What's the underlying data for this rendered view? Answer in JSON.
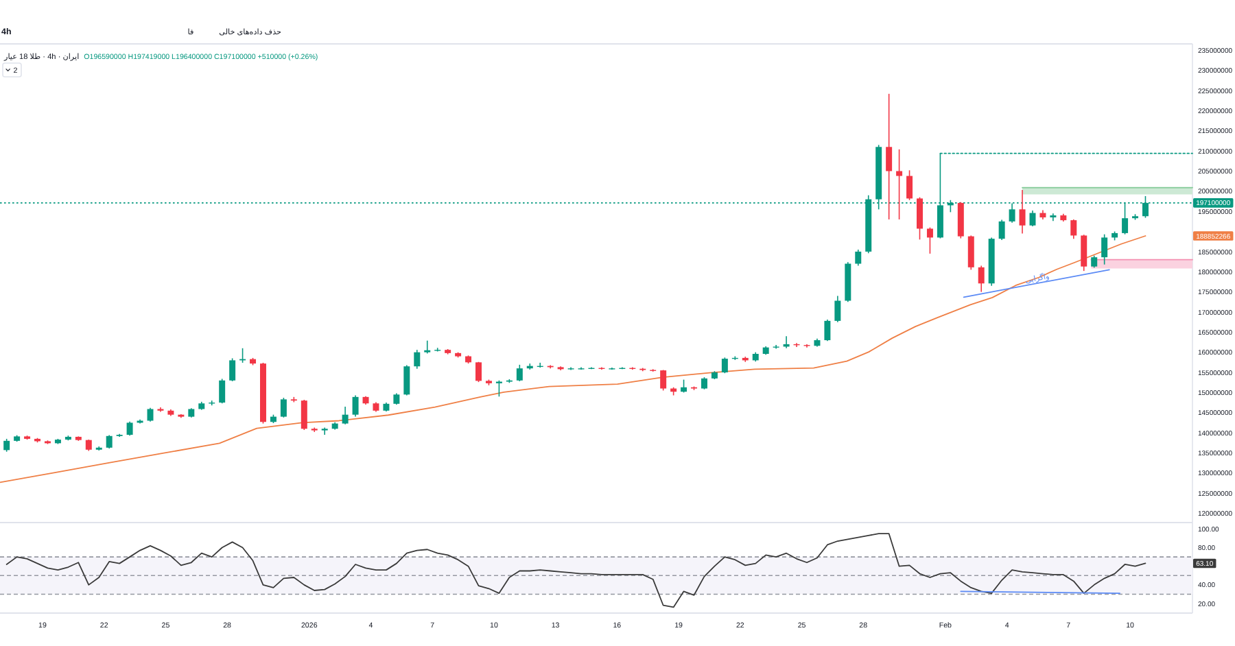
{
  "chart_data": [
    {
      "type": "candlestick",
      "title": "ایران · 4h · طلا 18 عیار",
      "subtitle": "O196590000 H197419000 L196400000 C197100000 +510000 (+0.26%)",
      "x": [
        "2025-12-17T06:00",
        "2025-12-17T18:00",
        "2025-12-18T06:00",
        "2025-12-18T18:00",
        "2025-12-19T06:00",
        "2025-12-19T18:00",
        "2025-12-20T06:00",
        "2025-12-20T18:00",
        "2025-12-21T06:00",
        "2025-12-21T18:00",
        "2025-12-22T06:00",
        "2025-12-22T18:00",
        "2025-12-23T06:00",
        "2025-12-23T18:00",
        "2025-12-24T06:00",
        "2025-12-24T18:00",
        "2025-12-25T06:00",
        "2025-12-25T18:00",
        "2025-12-26T06:00",
        "2025-12-26T18:00",
        "2025-12-27T06:00",
        "2025-12-27T18:00",
        "2025-12-28T06:00",
        "2025-12-28T18:00",
        "2025-12-29T06:00",
        "2025-12-29T18:00",
        "2025-12-30T06:00",
        "2025-12-30T18:00",
        "2025-12-31T06:00",
        "2025-12-31T18:00",
        "2026-01-01T06:00",
        "2026-01-01T18:00",
        "2026-01-02T06:00",
        "2026-01-02T18:00",
        "2026-01-03T06:00",
        "2026-01-03T18:00",
        "2026-01-04T06:00",
        "2026-01-04T18:00",
        "2026-01-05T06:00",
        "2026-01-05T18:00",
        "2026-01-06T06:00",
        "2026-01-06T18:00",
        "2026-01-07T06:00",
        "2026-01-07T18:00",
        "2026-01-08T06:00",
        "2026-01-08T18:00",
        "2026-01-09T06:00",
        "2026-01-09T18:00",
        "2026-01-10T06:00",
        "2026-01-10T18:00",
        "2026-01-11T06:00",
        "2026-01-11T18:00",
        "2026-01-12T06:00",
        "2026-01-12T18:00",
        "2026-01-13T06:00",
        "2026-01-13T18:00",
        "2026-01-14T06:00",
        "2026-01-14T18:00",
        "2026-01-15T06:00",
        "2026-01-15T18:00",
        "2026-01-16T06:00",
        "2026-01-16T18:00",
        "2026-01-17T06:00",
        "2026-01-17T18:00",
        "2026-01-18T06:00",
        "2026-01-18T18:00",
        "2026-01-19T06:00",
        "2026-01-19T18:00",
        "2026-01-20T06:00",
        "2026-01-20T18:00",
        "2026-01-21T06:00",
        "2026-01-21T18:00",
        "2026-01-22T06:00",
        "2026-01-22T18:00",
        "2026-01-23T06:00",
        "2026-01-23T18:00",
        "2026-01-24T06:00",
        "2026-01-24T18:00",
        "2026-01-25T06:00",
        "2026-01-25T18:00",
        "2026-01-26T06:00",
        "2026-01-26T18:00",
        "2026-01-27T06:00",
        "2026-01-27T18:00",
        "2026-01-28T06:00",
        "2026-01-28T18:00",
        "2026-01-29T06:00",
        "2026-01-29T18:00",
        "2026-01-30T06:00",
        "2026-01-30T18:00",
        "2026-01-31T06:00",
        "2026-01-31T18:00",
        "2026-02-01T06:00",
        "2026-02-01T18:00",
        "2026-02-02T06:00",
        "2026-02-02T18:00",
        "2026-02-03T06:00",
        "2026-02-03T18:00",
        "2026-02-04T06:00",
        "2026-02-04T18:00",
        "2026-02-05T06:00",
        "2026-02-05T18:00",
        "2026-02-06T06:00",
        "2026-02-06T18:00",
        "2026-02-07T06:00",
        "2026-02-07T18:00",
        "2026-02-08T06:00",
        "2026-02-08T18:00",
        "2026-02-09T06:00",
        "2026-02-09T18:00",
        "2026-02-10T06:00",
        "2026-02-10T18:00"
      ],
      "ohlc": [
        [
          135700000,
          138500000,
          135300000,
          138000000
        ],
        [
          138000000,
          139400000,
          137800000,
          139100000
        ],
        [
          139100000,
          139300000,
          138300000,
          138500000
        ],
        [
          138500000,
          138700000,
          137600000,
          137900000
        ],
        [
          137900000,
          138100000,
          137200000,
          137400000
        ],
        [
          137400000,
          138500000,
          137200000,
          138300000
        ],
        [
          138300000,
          139300000,
          138100000,
          139000000
        ],
        [
          139000000,
          139100000,
          138000000,
          138200000
        ],
        [
          138200000,
          138300000,
          135500000,
          135800000
        ],
        [
          135800000,
          136600000,
          135600000,
          136300000
        ],
        [
          136300000,
          139400000,
          136100000,
          139200000
        ],
        [
          139200000,
          139700000,
          139000000,
          139500000
        ],
        [
          139500000,
          142800000,
          139300000,
          142500000
        ],
        [
          142500000,
          143300000,
          142300000,
          143000000
        ],
        [
          143000000,
          146200000,
          142800000,
          145900000
        ],
        [
          145900000,
          146300000,
          145200000,
          145500000
        ],
        [
          145500000,
          145800000,
          144200000,
          144500000
        ],
        [
          144500000,
          144600000,
          143700000,
          144000000
        ],
        [
          144000000,
          146100000,
          143800000,
          145900000
        ],
        [
          145900000,
          147700000,
          145700000,
          147300000
        ],
        [
          147300000,
          148000000,
          146800000,
          147500000
        ],
        [
          147500000,
          153400000,
          147300000,
          153000000
        ],
        [
          153000000,
          158500000,
          152800000,
          158000000
        ],
        [
          158000000,
          161000000,
          157400000,
          158300000
        ],
        [
          158300000,
          158600000,
          156800000,
          157200000
        ],
        [
          157200000,
          157400000,
          142300000,
          142700000
        ],
        [
          142700000,
          144500000,
          142400000,
          144000000
        ],
        [
          144000000,
          148700000,
          143800000,
          148300000
        ],
        [
          148300000,
          148900000,
          147600000,
          148000000
        ],
        [
          148000000,
          148200000,
          140700000,
          141000000
        ],
        [
          141000000,
          141300000,
          140200000,
          140600000
        ],
        [
          140600000,
          141300000,
          139500000,
          141000000
        ],
        [
          141000000,
          142600000,
          140800000,
          142300000
        ],
        [
          142300000,
          146500000,
          142100000,
          144500000
        ],
        [
          144500000,
          149300000,
          144000000,
          148900000
        ],
        [
          148900000,
          149100000,
          147000000,
          147300000
        ],
        [
          147300000,
          147600000,
          145200000,
          145500000
        ],
        [
          145500000,
          147500000,
          145300000,
          147200000
        ],
        [
          147200000,
          149800000,
          147000000,
          149500000
        ],
        [
          149500000,
          156800000,
          149300000,
          156500000
        ],
        [
          156500000,
          160600000,
          155900000,
          160000000
        ],
        [
          160000000,
          162900000,
          159700000,
          160500000
        ],
        [
          160500000,
          161100000,
          160200000,
          160600000
        ],
        [
          160600000,
          160800000,
          159500000,
          159800000
        ],
        [
          159800000,
          160000000,
          158700000,
          159000000
        ],
        [
          159000000,
          159200000,
          157200000,
          157500000
        ],
        [
          157500000,
          157600000,
          152600000,
          152900000
        ],
        [
          152900000,
          153200000,
          151800000,
          152300000
        ],
        [
          152300000,
          153000000,
          149000000,
          152700000
        ],
        [
          152700000,
          153300000,
          152400000,
          153000000
        ],
        [
          153000000,
          156900000,
          152800000,
          156000000
        ],
        [
          156000000,
          157200000,
          155700000,
          156600000
        ],
        [
          156600000,
          157400000,
          156200000,
          156600000
        ],
        [
          156600000,
          156800000,
          156000000,
          156300000
        ],
        [
          156300000,
          156500000,
          155500000,
          155800000
        ],
        [
          155800000,
          156300000,
          155600000,
          156000000
        ],
        [
          156000000,
          156300000,
          155700000,
          156000000
        ],
        [
          156000000,
          156300000,
          155800000,
          156100000
        ],
        [
          156100000,
          156300000,
          155700000,
          155900000
        ],
        [
          155900000,
          156200000,
          155700000,
          156000000
        ],
        [
          156000000,
          156300000,
          155800000,
          156100000
        ],
        [
          156100000,
          156300000,
          155700000,
          155900000
        ],
        [
          155900000,
          156100000,
          155300000,
          155600000
        ],
        [
          155600000,
          155800000,
          155200000,
          155500000
        ],
        [
          155500000,
          155600000,
          150500000,
          151000000
        ],
        [
          151000000,
          151300000,
          149300000,
          150200000
        ],
        [
          150200000,
          153200000,
          150000000,
          151300000
        ],
        [
          151300000,
          151500000,
          150600000,
          151000000
        ],
        [
          151000000,
          153800000,
          150800000,
          153500000
        ],
        [
          153500000,
          155300000,
          153300000,
          155000000
        ],
        [
          155000000,
          158700000,
          154800000,
          158400000
        ],
        [
          158400000,
          159000000,
          158100000,
          158600000
        ],
        [
          158600000,
          158900000,
          157600000,
          158000000
        ],
        [
          158000000,
          160000000,
          157700000,
          159600000
        ],
        [
          159600000,
          161500000,
          159400000,
          161200000
        ],
        [
          161200000,
          161800000,
          160900000,
          161400000
        ],
        [
          161400000,
          164000000,
          161000000,
          162000000
        ],
        [
          162000000,
          162300000,
          161300000,
          161800000
        ],
        [
          161800000,
          162000000,
          161200000,
          161600000
        ],
        [
          161600000,
          163400000,
          161400000,
          163000000
        ],
        [
          163000000,
          168100000,
          162800000,
          167800000
        ],
        [
          167800000,
          174000000,
          167500000,
          172800000
        ],
        [
          172800000,
          182400000,
          172500000,
          182000000
        ],
        [
          182000000,
          185500000,
          181500000,
          185000000
        ],
        [
          185000000,
          199000000,
          184600000,
          198000000
        ],
        [
          198000000,
          211500000,
          195500000,
          211000000
        ],
        [
          211000000,
          224200000,
          193000000,
          205000000
        ],
        [
          205000000,
          210400000,
          193000000,
          203800000
        ],
        [
          203800000,
          205200000,
          197800000,
          198200000
        ],
        [
          198200000,
          198500000,
          188000000,
          190700000
        ],
        [
          190700000,
          191000000,
          184500000,
          188500000
        ],
        [
          188500000,
          209400000,
          188300000,
          196500000
        ],
        [
          196500000,
          197800000,
          194800000,
          197100000
        ],
        [
          197100000,
          197300000,
          188300000,
          188800000
        ],
        [
          188800000,
          189000000,
          180500000,
          181100000
        ],
        [
          181100000,
          181500000,
          175000000,
          177100000
        ],
        [
          177100000,
          188500000,
          176500000,
          188200000
        ],
        [
          188200000,
          192900000,
          187900000,
          192500000
        ],
        [
          192500000,
          197000000,
          192200000,
          195500000
        ],
        [
          195500000,
          200300000,
          189500000,
          191500000
        ],
        [
          191500000,
          195200000,
          191300000,
          194600000
        ],
        [
          194600000,
          195300000,
          193000000,
          193500000
        ],
        [
          193500000,
          194500000,
          192600000,
          194000000
        ],
        [
          194000000,
          194400000,
          192500000,
          192800000
        ],
        [
          192800000,
          193000000,
          188200000,
          189000000
        ],
        [
          189000000,
          189200000,
          180200000,
          181300000
        ],
        [
          181300000,
          184000000,
          181000000,
          183600000
        ],
        [
          183600000,
          189300000,
          181800000,
          188500000
        ],
        [
          188500000,
          190000000,
          187800000,
          189600000
        ],
        [
          189600000,
          197200000,
          189300000,
          193300000
        ],
        [
          193300000,
          194300000,
          192900000,
          193800000
        ],
        [
          193800000,
          198800000,
          193400000,
          197100000
        ]
      ],
      "colors": [
        "#089981",
        "#089981",
        "#f23645",
        "#f23645",
        "#f23645",
        "#089981",
        "#089981",
        "#f23645",
        "#f23645",
        "#089981",
        "#089981",
        "#089981",
        "#089981",
        "#089981",
        "#089981",
        "#f23645",
        "#f23645",
        "#f23645",
        "#089981",
        "#089981",
        "#089981",
        "#089981",
        "#089981",
        "#089981",
        "#f23645",
        "#f23645",
        "#089981",
        "#089981",
        "#f23645",
        "#f23645",
        "#f23645",
        "#089981",
        "#089981",
        "#089981",
        "#089981",
        "#f23645",
        "#f23645",
        "#089981",
        "#089981",
        "#089981",
        "#089981",
        "#089981",
        "#089981",
        "#f23645",
        "#f23645",
        "#f23645",
        "#f23645",
        "#f23645",
        "#089981",
        "#089981",
        "#089981",
        "#089981",
        "#089981",
        "#f23645",
        "#f23645",
        "#089981",
        "#089981",
        "#089981",
        "#f23645",
        "#089981",
        "#089981",
        "#f23645",
        "#f23645",
        "#f23645",
        "#f23645",
        "#f23645",
        "#089981",
        "#f23645",
        "#089981",
        "#089981",
        "#089981",
        "#089981",
        "#f23645",
        "#089981",
        "#089981",
        "#089981",
        "#089981",
        "#f23645",
        "#f23645",
        "#089981",
        "#089981",
        "#089981",
        "#089981",
        "#089981",
        "#089981",
        "#089981",
        "#f23645",
        "#f23645",
        "#f23645",
        "#f23645",
        "#f23645",
        "#089981",
        "#089981",
        "#f23645",
        "#f23645",
        "#f23645",
        "#089981",
        "#089981",
        "#089981",
        "#f23645",
        "#089981",
        "#f23645",
        "#089981",
        "#f23645",
        "#f23645",
        "#f23645",
        "#089981",
        "#089981",
        "#089981",
        "#089981",
        "#089981",
        "#089981"
      ],
      "series": [
        {
          "type": "line",
          "color": "#ef7f45",
          "x": [
            "2025-12-16T22:15",
            "2025-12-19T14:30",
            "2025-12-22T06:40",
            "2025-12-24T23:00",
            "2025-12-27T15:00",
            "2025-12-29T10:30",
            "2025-12-31T15:30",
            "2026-01-02T10:45",
            "2026-01-04T20:30",
            "2026-01-07T03:00",
            "2026-01-09T08:00",
            "2026-01-10T11:30",
            "2026-01-12T16:30",
            "2026-01-16T00:30",
            "2026-01-18T05:30",
            "2026-01-20T12:00",
            "2026-01-22T17:00",
            "2026-01-25T14:00",
            "2026-01-27T04:45",
            "2026-01-28T06:30",
            "2026-01-29T09:45",
            "2026-01-30T13:00",
            "2026-01-31T14:45",
            "2026-02-02T05:15",
            "2026-02-03T07:00",
            "2026-02-04T10:15",
            "2026-02-05T13:30",
            "2026-02-06T10:15",
            "2026-02-07T07:15",
            "2026-02-08T10:30",
            "2026-02-09T13:45",
            "2026-02-10T18:00"
          ],
          "values": [
            127700000,
            130100000,
            132600000,
            135000000,
            137400000,
            141100000,
            142500000,
            143000000,
            144400000,
            146400000,
            148900000,
            150100000,
            151500000,
            152100000,
            153800000,
            154900000,
            155800000,
            156100000,
            157800000,
            160100000,
            163500000,
            166400000,
            168600000,
            171800000,
            173600000,
            176600000,
            178600000,
            180600000,
            182300000,
            184600000,
            186900000,
            188900000
          ]
        },
        {
          "type": "line",
          "color": "#5b8af5",
          "x": [
            "2026-02-01T21:30",
            "2026-02-08T23:45"
          ],
          "values": [
            173700000,
            180500000
          ]
        },
        {
          "type": "line",
          "color": "#089981",
          "line_style": "dotted",
          "x": [
            "2026-01-31T18:00",
            "2026-02-13T01:00"
          ],
          "values": [
            209400000,
            209400000
          ]
        },
        {
          "type": "line",
          "color": "#81c995",
          "x": [
            "2026-02-04T18:00",
            "2026-02-13T01:00"
          ],
          "values": [
            200900000,
            200900000
          ],
          "lower": [
            199200000,
            199200000
          ],
          "upper": [
            200900000,
            200900000
          ]
        },
        {
          "type": "line",
          "color": "#f48fb1",
          "x": [
            "2026-02-08T02:30",
            "2026-02-13T01:00"
          ],
          "values": [
            183000000,
            183000000
          ],
          "lower": [
            180800000,
            180800000
          ],
          "upper": [
            183000000,
            183000000
          ]
        }
      ],
      "xlim": [
        "2025-12-16T22:15",
        "2026-02-13T01:00"
      ],
      "ylim": [
        117700000,
        236600000
      ],
      "yticks": [
        120000000,
        125000000,
        130000000,
        135000000,
        140000000,
        145000000,
        150000000,
        155000000,
        160000000,
        165000000,
        170000000,
        175000000,
        180000000,
        185000000,
        195000000,
        200000000,
        205000000,
        210000000,
        215000000,
        220000000,
        225000000,
        230000000,
        235000000
      ],
      "tick_labels": "y",
      "ref_lines": [
        {
          "axis": "y",
          "value": 197100000,
          "label": "197100000",
          "color": "#089981",
          "line_style": "dotted"
        }
      ],
      "annotations": [
        "4h",
        "فا",
        "حذف داده‌های خالی",
        "2",
        {
          "text": "واگرایی",
          "x": "2026-02-05T12:00",
          "y": 177800000
        },
        "188852266"
      ]
    },
    {
      "type": "line",
      "series": [
        {
          "color": "#3a3a3a",
          "x": [
            "2025-12-17T06:00",
            "2025-12-17T18:00",
            "2025-12-18T06:00",
            "2025-12-18T18:00",
            "2025-12-19T06:00",
            "2025-12-19T18:00",
            "2025-12-20T06:00",
            "2025-12-20T18:00",
            "2025-12-21T06:00",
            "2025-12-21T18:00",
            "2025-12-22T06:00",
            "2025-12-22T18:00",
            "2025-12-23T06:00",
            "2025-12-23T18:00",
            "2025-12-24T06:00",
            "2025-12-24T18:00",
            "2025-12-25T06:00",
            "2025-12-25T18:00",
            "2025-12-26T06:00",
            "2025-12-26T18:00",
            "2025-12-27T06:00",
            "2025-12-27T18:00",
            "2025-12-28T06:00",
            "2025-12-28T18:00",
            "2025-12-29T06:00",
            "2025-12-29T18:00",
            "2025-12-30T06:00",
            "2025-12-30T18:00",
            "2025-12-31T06:00",
            "2025-12-31T18:00",
            "2026-01-01T06:00",
            "2026-01-01T18:00",
            "2026-01-02T06:00",
            "2026-01-02T18:00",
            "2026-01-03T06:00",
            "2026-01-03T18:00",
            "2026-01-04T06:00",
            "2026-01-04T18:00",
            "2026-01-05T06:00",
            "2026-01-05T18:00",
            "2026-01-06T06:00",
            "2026-01-06T18:00",
            "2026-01-07T06:00",
            "2026-01-07T18:00",
            "2026-01-08T06:00",
            "2026-01-08T18:00",
            "2026-01-09T06:00",
            "2026-01-09T18:00",
            "2026-01-10T06:00",
            "2026-01-10T18:00",
            "2026-01-11T06:00",
            "2026-01-11T18:00",
            "2026-01-12T06:00",
            "2026-01-12T18:00",
            "2026-01-13T06:00",
            "2026-01-13T18:00",
            "2026-01-14T06:00",
            "2026-01-14T18:00",
            "2026-01-15T06:00",
            "2026-01-15T18:00",
            "2026-01-16T06:00",
            "2026-01-16T18:00",
            "2026-01-17T06:00",
            "2026-01-17T18:00",
            "2026-01-18T06:00",
            "2026-01-18T18:00",
            "2026-01-19T06:00",
            "2026-01-19T18:00",
            "2026-01-20T06:00",
            "2026-01-20T18:00",
            "2026-01-21T06:00",
            "2026-01-21T18:00",
            "2026-01-22T06:00",
            "2026-01-22T18:00",
            "2026-01-23T06:00",
            "2026-01-23T18:00",
            "2026-01-24T06:00",
            "2026-01-24T18:00",
            "2026-01-25T06:00",
            "2026-01-25T18:00",
            "2026-01-26T06:00",
            "2026-01-26T18:00",
            "2026-01-27T06:00",
            "2026-01-27T18:00",
            "2026-01-28T06:00",
            "2026-01-28T18:00",
            "2026-01-29T06:00",
            "2026-01-29T18:00",
            "2026-01-30T06:00",
            "2026-01-30T18:00",
            "2026-01-31T06:00",
            "2026-01-31T18:00",
            "2026-02-01T06:00",
            "2026-02-01T18:00",
            "2026-02-02T06:00",
            "2026-02-02T18:00",
            "2026-02-03T06:00",
            "2026-02-03T18:00",
            "2026-02-04T06:00",
            "2026-02-04T18:00",
            "2026-02-05T06:00",
            "2026-02-05T18:00",
            "2026-02-06T06:00",
            "2026-02-06T18:00",
            "2026-02-07T06:00",
            "2026-02-07T18:00",
            "2026-02-08T06:00",
            "2026-02-08T18:00",
            "2026-02-09T06:00",
            "2026-02-09T18:00",
            "2026-02-10T06:00",
            "2026-02-10T18:00"
          ],
          "values": [
            62,
            70,
            68,
            63,
            58,
            56,
            59,
            64,
            40,
            48,
            65,
            63,
            70,
            77,
            82,
            77,
            71,
            61,
            64,
            74,
            70,
            80,
            86,
            80,
            66,
            40,
            37,
            47,
            48,
            40,
            34,
            35,
            41,
            49,
            62,
            58,
            56,
            56,
            63,
            74,
            77,
            78,
            74,
            72,
            67,
            60,
            39,
            36,
            31,
            48,
            55,
            55,
            56,
            55,
            54,
            53,
            52,
            52,
            51,
            51,
            51,
            51,
            51,
            46,
            18,
            16,
            33,
            29,
            49,
            60,
            70,
            67,
            61,
            63,
            72,
            70,
            74,
            68,
            64,
            69,
            83,
            87,
            89,
            91,
            93,
            95,
            95,
            60,
            61,
            52,
            48,
            52,
            53,
            44,
            37,
            33,
            31,
            45,
            56,
            54,
            53,
            52,
            51,
            51,
            44,
            31,
            40,
            47,
            52,
            62,
            60,
            63.1
          ]
        },
        {
          "color": "#5b8af5",
          "x": [
            "2026-02-01T18:00",
            "2026-02-09T12:00"
          ],
          "values": [
            33,
            31
          ]
        }
      ],
      "xlim": [
        "2025-12-16T22:15",
        "2026-02-13T01:00"
      ],
      "xticks": [
        {
          "value": "2025-12-19",
          "label": "19"
        },
        {
          "value": "2025-12-22",
          "label": "22"
        },
        {
          "value": "2025-12-25",
          "label": "25"
        },
        {
          "value": "2025-12-28",
          "label": "28"
        },
        {
          "value": "2026-01-01",
          "label": "2026"
        },
        {
          "value": "2026-01-04",
          "label": "4"
        },
        {
          "value": "2026-01-07",
          "label": "7"
        },
        {
          "value": "2026-01-10",
          "label": "10"
        },
        {
          "value": "2026-01-13",
          "label": "13"
        },
        {
          "value": "2026-01-16",
          "label": "16"
        },
        {
          "value": "2026-01-19",
          "label": "19"
        },
        {
          "value": "2026-01-22",
          "label": "22"
        },
        {
          "value": "2026-01-25",
          "label": "25"
        },
        {
          "value": "2026-01-28",
          "label": "28"
        },
        {
          "value": "2026-02-01",
          "label": "Feb"
        },
        {
          "value": "2026-02-04",
          "label": "4"
        },
        {
          "value": "2026-02-07",
          "label": "7"
        },
        {
          "value": "2026-02-10",
          "label": "10"
        }
      ],
      "ylim": [
        9.7,
        106.9
      ],
      "yticks": [
        {
          "value": 20,
          "label": "20.00"
        },
        {
          "value": 40,
          "label": "40.00"
        },
        {
          "value": 80,
          "label": "80.00"
        },
        {
          "value": 100,
          "label": "100.00"
        }
      ],
      "ref_lines": [
        {
          "axis": "y",
          "value": 70,
          "color": "#9598a1",
          "line_style": "dashed"
        },
        {
          "axis": "y",
          "value": 50,
          "color": "#9598a1",
          "line_style": "dashed"
        },
        {
          "axis": "y",
          "value": 30,
          "color": "#9598a1",
          "line_style": "dashed"
        }
      ],
      "bands": [
        {
          "axis": "y",
          "from": 30,
          "to": 70,
          "color": "#f5f4fa"
        }
      ],
      "annotations": [
        {
          "text": "63.10",
          "y": 63.1
        }
      ]
    }
  ]
}
